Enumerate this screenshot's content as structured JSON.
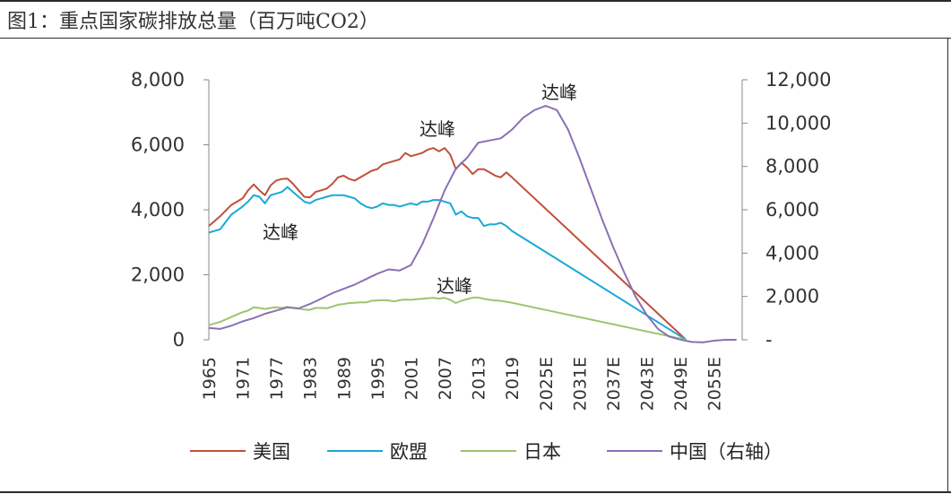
{
  "figure": {
    "title": "图1：重点国家碳排放总量（百万吨CO2）"
  },
  "chart_data": {
    "type": "line",
    "title": "",
    "xlabel": "",
    "ylabel": "",
    "grid": false,
    "legend_position": "bottom",
    "x_tick_labels": [
      "1965",
      "1971",
      "1977",
      "1983",
      "1989",
      "1995",
      "2001",
      "2007",
      "2013",
      "2019",
      "2025E",
      "2031E",
      "2037E",
      "2043E",
      "2049E",
      "2055E"
    ],
    "y_left": {
      "ylim": [
        0,
        8000
      ],
      "ticks": [
        "0",
        "2,000",
        "4,000",
        "6,000",
        "8,000"
      ]
    },
    "y_right": {
      "ylim": [
        0,
        12000
      ],
      "ticks": [
        "-",
        "2,000",
        "4,000",
        "6,000",
        "8,000",
        "10,000",
        "12,000"
      ]
    },
    "x_range": [
      1965,
      2060
    ],
    "series": [
      {
        "name": "美国",
        "axis": "left",
        "color": "#c0503a",
        "x": [
          1965,
          1967,
          1969,
          1971,
          1972,
          1973,
          1974,
          1975,
          1976,
          1977,
          1978,
          1979,
          1980,
          1981,
          1982,
          1983,
          1984,
          1985,
          1986,
          1987,
          1988,
          1989,
          1990,
          1991,
          1992,
          1993,
          1994,
          1995,
          1996,
          1997,
          1998,
          1999,
          2000,
          2001,
          2002,
          2003,
          2004,
          2005,
          2006,
          2007,
          2008,
          2009,
          2010,
          2011,
          2012,
          2013,
          2014,
          2015,
          2016,
          2017,
          2018,
          2019,
          2050
        ],
        "y": [
          3500,
          3800,
          4150,
          4350,
          4600,
          4780,
          4600,
          4450,
          4750,
          4900,
          4950,
          4960,
          4800,
          4600,
          4400,
          4380,
          4550,
          4600,
          4650,
          4800,
          5000,
          5050,
          4950,
          4900,
          5000,
          5100,
          5200,
          5250,
          5400,
          5450,
          5500,
          5550,
          5750,
          5650,
          5700,
          5750,
          5850,
          5900,
          5800,
          5900,
          5700,
          5250,
          5450,
          5300,
          5100,
          5250,
          5250,
          5150,
          5050,
          5000,
          5150,
          5000,
          0
        ]
      },
      {
        "name": "欧盟",
        "axis": "left",
        "color": "#1aa8d8",
        "x": [
          1965,
          1967,
          1969,
          1971,
          1972,
          1973,
          1974,
          1975,
          1976,
          1977,
          1978,
          1979,
          1980,
          1981,
          1982,
          1983,
          1984,
          1985,
          1986,
          1987,
          1988,
          1989,
          1990,
          1991,
          1992,
          1993,
          1994,
          1995,
          1996,
          1997,
          1998,
          1999,
          2000,
          2001,
          2002,
          2003,
          2004,
          2005,
          2006,
          2007,
          2008,
          2009,
          2010,
          2011,
          2012,
          2013,
          2014,
          2015,
          2016,
          2017,
          2018,
          2019,
          2050
        ],
        "y": [
          3300,
          3400,
          3850,
          4100,
          4250,
          4450,
          4400,
          4200,
          4450,
          4500,
          4550,
          4700,
          4550,
          4400,
          4250,
          4200,
          4300,
          4350,
          4400,
          4450,
          4450,
          4450,
          4400,
          4350,
          4200,
          4100,
          4050,
          4100,
          4200,
          4150,
          4150,
          4100,
          4150,
          4200,
          4150,
          4250,
          4250,
          4300,
          4300,
          4250,
          4200,
          3850,
          3950,
          3800,
          3750,
          3750,
          3500,
          3550,
          3550,
          3600,
          3500,
          3350,
          0
        ]
      },
      {
        "name": "日本",
        "axis": "left",
        "color": "#9dc470",
        "x": [
          1965,
          1967,
          1969,
          1971,
          1972,
          1973,
          1974,
          1975,
          1976,
          1977,
          1978,
          1979,
          1980,
          1981,
          1982,
          1983,
          1984,
          1985,
          1986,
          1987,
          1988,
          1989,
          1990,
          1991,
          1992,
          1993,
          1994,
          1995,
          1996,
          1997,
          1998,
          1999,
          2000,
          2001,
          2002,
          2003,
          2004,
          2005,
          2006,
          2007,
          2008,
          2009,
          2010,
          2011,
          2012,
          2013,
          2014,
          2015,
          2016,
          2017,
          2018,
          2019,
          2050
        ],
        "y": [
          450,
          550,
          700,
          850,
          900,
          1000,
          980,
          950,
          980,
          1000,
          980,
          1010,
          980,
          960,
          930,
          920,
          980,
          980,
          970,
          1020,
          1080,
          1100,
          1130,
          1140,
          1150,
          1150,
          1200,
          1210,
          1220,
          1210,
          1180,
          1220,
          1240,
          1230,
          1250,
          1260,
          1280,
          1290,
          1270,
          1290,
          1230,
          1130,
          1200,
          1250,
          1300,
          1300,
          1260,
          1230,
          1210,
          1200,
          1170,
          1140,
          0
        ]
      },
      {
        "name": "中国（右轴）",
        "axis": "right",
        "color": "#8a71b5",
        "x": [
          1965,
          1967,
          1969,
          1971,
          1973,
          1975,
          1977,
          1979,
          1981,
          1983,
          1985,
          1987,
          1989,
          1991,
          1993,
          1995,
          1997,
          1999,
          2001,
          2003,
          2005,
          2007,
          2009,
          2011,
          2013,
          2015,
          2017,
          2019,
          2021,
          2023,
          2025,
          2027,
          2029,
          2031,
          2033,
          2035,
          2037,
          2039,
          2041,
          2043,
          2045,
          2047,
          2049,
          2051,
          2053,
          2055,
          2057,
          2059
        ],
        "y": [
          550,
          500,
          650,
          850,
          1000,
          1200,
          1350,
          1500,
          1450,
          1650,
          1900,
          2150,
          2350,
          2550,
          2800,
          3050,
          3250,
          3200,
          3450,
          4400,
          5600,
          6900,
          7900,
          8400,
          9100,
          9200,
          9300,
          9700,
          10250,
          10600,
          10800,
          10600,
          9700,
          8400,
          7000,
          5600,
          4300,
          3100,
          2000,
          1150,
          500,
          150,
          10,
          -100,
          -120,
          -40,
          0,
          0
        ]
      }
    ],
    "annotations": [
      {
        "text": "达峰",
        "target": "美国"
      },
      {
        "text": "达峰",
        "target": "欧盟"
      },
      {
        "text": "达峰",
        "target": "日本"
      },
      {
        "text": "达峰",
        "target": "中国（右轴）"
      }
    ]
  }
}
